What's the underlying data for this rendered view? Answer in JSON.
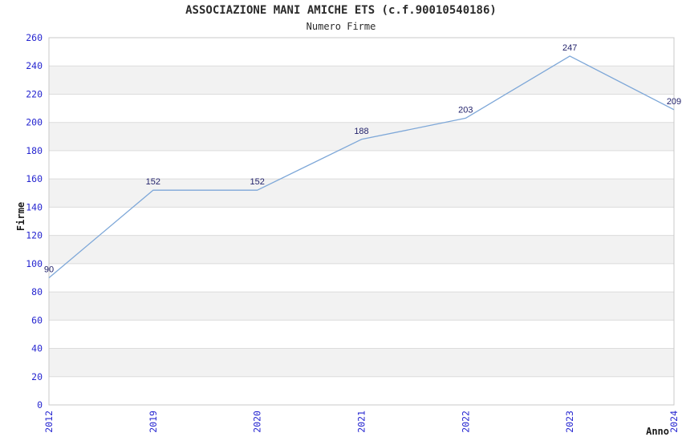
{
  "chart_data": {
    "type": "line",
    "title": "ASSOCIAZIONE MANI AMICHE ETS (c.f.90010540186)",
    "subtitle": "Numero Firme",
    "xlabel": "Anno",
    "ylabel": "Firme",
    "categories": [
      "2012",
      "2019",
      "2020",
      "2021",
      "2022",
      "2023",
      "2024"
    ],
    "values": [
      90,
      152,
      152,
      188,
      203,
      247,
      209
    ],
    "yticks": [
      0,
      20,
      40,
      60,
      80,
      100,
      120,
      140,
      160,
      180,
      200,
      220,
      240,
      260
    ],
    "ylim": [
      0,
      260
    ],
    "legend": "none",
    "grid": "horizontal-bands-alternating",
    "colors": {
      "line": "#7da7d8",
      "tick_label": "#2626d0",
      "value_label": "#22226b",
      "band_fill": "#f2f2f2",
      "band_line": "#dcdcdc",
      "plot_border": "#c8c8c8",
      "heading_text": "#2b2b2b"
    }
  }
}
